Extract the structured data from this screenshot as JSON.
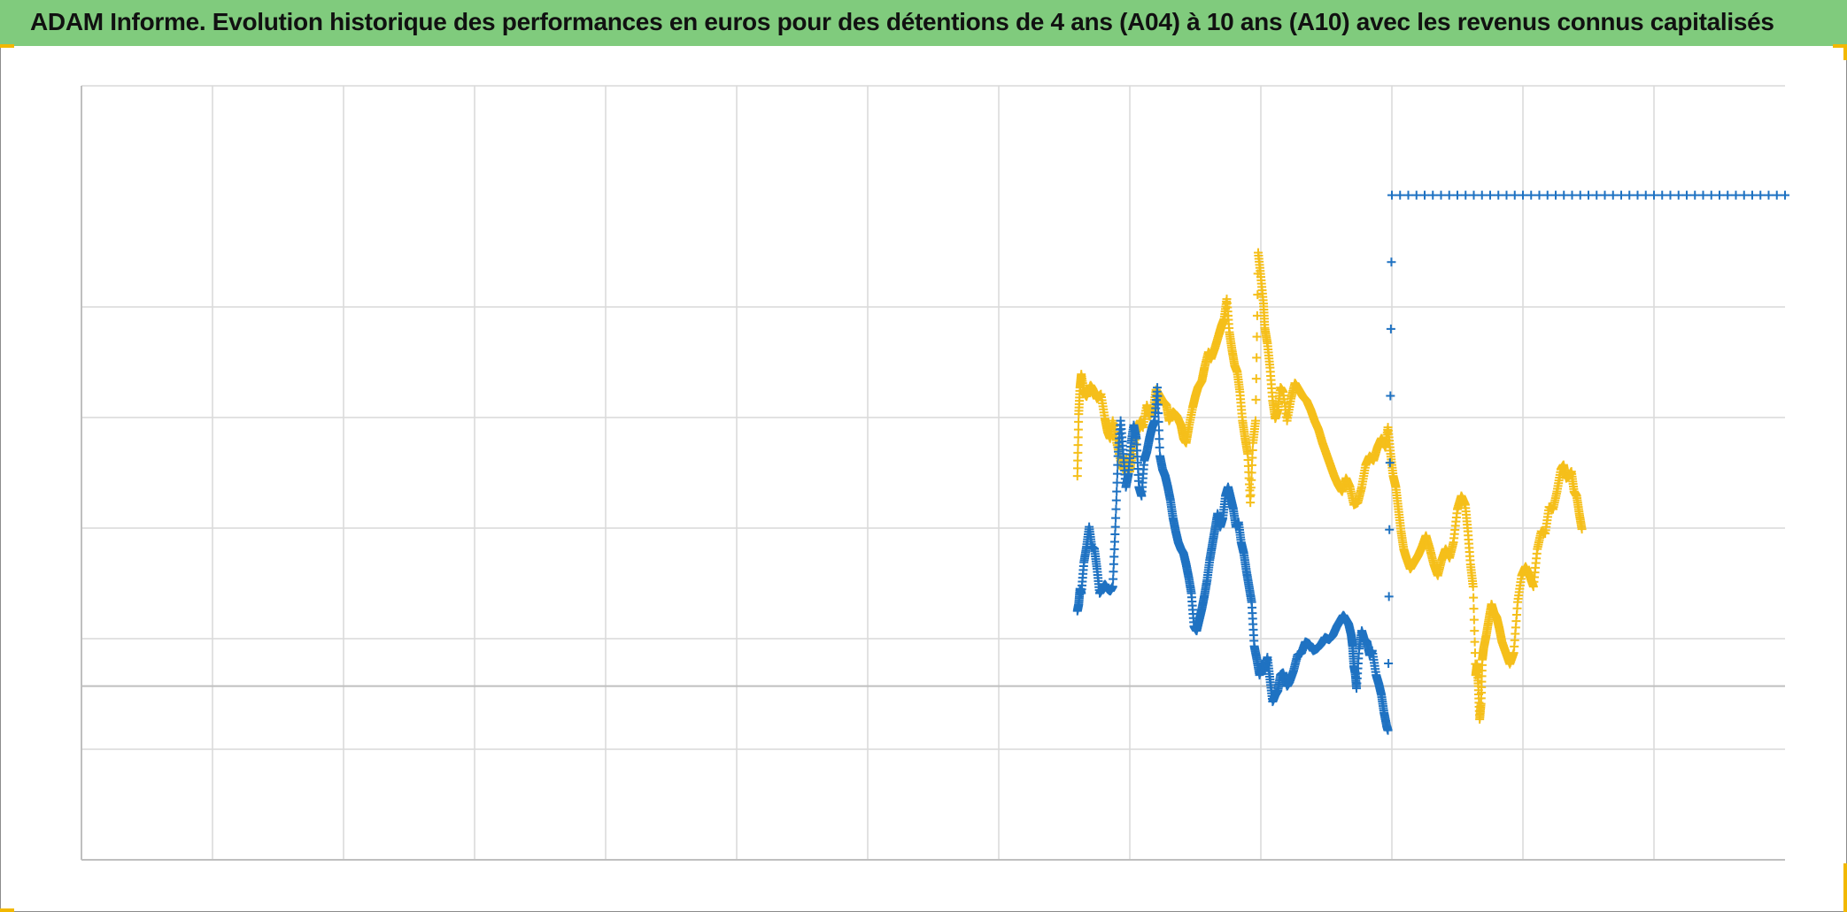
{
  "header": {
    "title": "ADAM Informe. Evolution historique des performances en euros pour des détentions de 4 ans (A04) à 10 ans (A10) avec les revenus connus capitalisés"
  },
  "colors": {
    "title_background": "#80cb7d",
    "corner_accent": "#f2b800",
    "series_a04": "#f5bf1a",
    "series_a10": "#1f72c2",
    "grid": "#d9d9d9",
    "zero_line": "#bfbfbf"
  },
  "chart_data": {
    "type": "scatter",
    "title": "ADAM Informe. Evolution historique des performances en euros pour des détentions de 4 ans (A04) à 10 ans (A10) avec les revenus connus capitalisés",
    "xlim": [
      0,
      13
    ],
    "ylim": [
      -0.7857,
      2.7143
    ],
    "x_gridlines": [
      1,
      2,
      3,
      4,
      5,
      6,
      7,
      8,
      9,
      10,
      11,
      12
    ],
    "y_gridlines": [
      1.7143,
      1.2143,
      0.7143,
      0.2143,
      0,
      -0.2857
    ],
    "tick_labels_x": [],
    "tick_labels_y": [],
    "legend": "none",
    "grid": true,
    "markers": "plus",
    "series": [
      {
        "key": "a04",
        "color": "#f5bf1a",
        "points": [
          [
            7.6,
            0.95
          ],
          [
            7.61,
            1.23
          ],
          [
            7.62,
            1.35
          ],
          [
            7.63,
            1.41
          ],
          [
            7.65,
            1.33
          ],
          [
            7.67,
            1.31
          ],
          [
            7.7,
            1.36
          ],
          [
            7.72,
            1.34
          ],
          [
            7.75,
            1.3
          ],
          [
            7.78,
            1.32
          ],
          [
            7.81,
            1.21
          ],
          [
            7.83,
            1.15
          ],
          [
            7.85,
            1.12
          ],
          [
            7.87,
            1.2
          ],
          [
            7.9,
            1.1
          ],
          [
            7.93,
            1.02
          ],
          [
            7.95,
            0.98
          ],
          [
            7.97,
            1.03
          ],
          [
            8.0,
            0.97
          ],
          [
            8.02,
            1.05
          ],
          [
            8.05,
            1.15
          ],
          [
            8.08,
            1.2
          ],
          [
            8.1,
            1.17
          ],
          [
            8.13,
            1.27
          ],
          [
            8.15,
            1.22
          ],
          [
            8.18,
            1.25
          ],
          [
            8.2,
            1.34
          ],
          [
            8.22,
            1.32
          ],
          [
            8.25,
            1.29
          ],
          [
            8.28,
            1.27
          ],
          [
            8.3,
            1.2
          ],
          [
            8.33,
            1.24
          ],
          [
            8.36,
            1.22
          ],
          [
            8.39,
            1.18
          ],
          [
            8.41,
            1.12
          ],
          [
            8.43,
            1.1
          ],
          [
            8.45,
            1.17
          ],
          [
            8.48,
            1.26
          ],
          [
            8.5,
            1.31
          ],
          [
            8.52,
            1.35
          ],
          [
            8.55,
            1.38
          ],
          [
            8.57,
            1.44
          ],
          [
            8.6,
            1.51
          ],
          [
            8.62,
            1.48
          ],
          [
            8.65,
            1.53
          ],
          [
            8.68,
            1.59
          ],
          [
            8.7,
            1.63
          ],
          [
            8.72,
            1.66
          ],
          [
            8.74,
            1.75
          ],
          [
            8.76,
            1.6
          ],
          [
            8.78,
            1.52
          ],
          [
            8.8,
            1.45
          ],
          [
            8.82,
            1.42
          ],
          [
            8.84,
            1.33
          ],
          [
            8.86,
            1.2
          ],
          [
            8.88,
            1.12
          ],
          [
            8.9,
            1.05
          ],
          [
            8.92,
            0.83
          ],
          [
            8.94,
            1.1
          ],
          [
            8.96,
            1.2
          ],
          [
            8.98,
            1.96
          ],
          [
            9.0,
            1.85
          ],
          [
            9.02,
            1.73
          ],
          [
            9.03,
            1.62
          ],
          [
            9.05,
            1.55
          ],
          [
            9.07,
            1.44
          ],
          [
            9.09,
            1.29
          ],
          [
            9.11,
            1.21
          ],
          [
            9.13,
            1.25
          ],
          [
            9.15,
            1.35
          ],
          [
            9.17,
            1.33
          ],
          [
            9.2,
            1.2
          ],
          [
            9.23,
            1.3
          ],
          [
            9.26,
            1.37
          ],
          [
            9.29,
            1.34
          ],
          [
            9.32,
            1.31
          ],
          [
            9.35,
            1.29
          ],
          [
            9.38,
            1.25
          ],
          [
            9.41,
            1.2
          ],
          [
            9.44,
            1.16
          ],
          [
            9.47,
            1.1
          ],
          [
            9.5,
            1.05
          ],
          [
            9.53,
            1.0
          ],
          [
            9.56,
            0.95
          ],
          [
            9.59,
            0.91
          ],
          [
            9.62,
            0.88
          ],
          [
            9.65,
            0.94
          ],
          [
            9.68,
            0.9
          ],
          [
            9.71,
            0.82
          ],
          [
            9.74,
            0.83
          ],
          [
            9.77,
            0.9
          ],
          [
            9.8,
            1.0
          ],
          [
            9.83,
            1.04
          ],
          [
            9.86,
            1.02
          ],
          [
            9.89,
            1.08
          ],
          [
            9.92,
            1.12
          ],
          [
            9.95,
            1.08
          ],
          [
            9.97,
            1.17
          ],
          [
            9.99,
            1.05
          ],
          [
            10.01,
            0.95
          ],
          [
            10.03,
            0.9
          ],
          [
            10.05,
            0.8
          ],
          [
            10.07,
            0.7
          ],
          [
            10.09,
            0.62
          ],
          [
            10.11,
            0.58
          ],
          [
            10.14,
            0.53
          ],
          [
            10.17,
            0.56
          ],
          [
            10.2,
            0.59
          ],
          [
            10.23,
            0.63
          ],
          [
            10.26,
            0.68
          ],
          [
            10.29,
            0.62
          ],
          [
            10.32,
            0.55
          ],
          [
            10.35,
            0.5
          ],
          [
            10.38,
            0.57
          ],
          [
            10.41,
            0.62
          ],
          [
            10.44,
            0.58
          ],
          [
            10.47,
            0.65
          ],
          [
            10.5,
            0.8
          ],
          [
            10.53,
            0.86
          ],
          [
            10.56,
            0.82
          ],
          [
            10.58,
            0.7
          ],
          [
            10.6,
            0.55
          ],
          [
            10.62,
            0.45
          ],
          [
            10.64,
            0.05
          ],
          [
            10.65,
            0.1
          ],
          [
            10.66,
            0.0
          ],
          [
            10.67,
            -0.15
          ],
          [
            10.68,
            -0.08
          ],
          [
            10.69,
            0.12
          ],
          [
            10.7,
            0.17
          ],
          [
            10.72,
            0.23
          ],
          [
            10.74,
            0.3
          ],
          [
            10.76,
            0.37
          ],
          [
            10.78,
            0.33
          ],
          [
            10.8,
            0.31
          ],
          [
            10.82,
            0.26
          ],
          [
            10.84,
            0.2
          ],
          [
            10.87,
            0.15
          ],
          [
            10.9,
            0.1
          ],
          [
            10.93,
            0.15
          ],
          [
            10.96,
            0.38
          ],
          [
            10.99,
            0.5
          ],
          [
            11.02,
            0.54
          ],
          [
            11.05,
            0.5
          ],
          [
            11.08,
            0.45
          ],
          [
            11.11,
            0.62
          ],
          [
            11.14,
            0.7
          ],
          [
            11.17,
            0.69
          ],
          [
            11.2,
            0.81
          ],
          [
            11.23,
            0.8
          ],
          [
            11.26,
            0.88
          ],
          [
            11.29,
            0.98
          ],
          [
            11.31,
            1.0
          ],
          [
            11.33,
            0.94
          ],
          [
            11.35,
            0.95
          ],
          [
            11.37,
            0.97
          ],
          [
            11.39,
            0.88
          ],
          [
            11.41,
            0.86
          ],
          [
            11.43,
            0.78
          ],
          [
            11.45,
            0.71
          ]
        ]
      },
      {
        "key": "a10",
        "color": "#1f72c2",
        "points": [
          [
            7.6,
            0.34
          ],
          [
            7.61,
            0.37
          ],
          [
            7.62,
            0.44
          ],
          [
            7.63,
            0.42
          ],
          [
            7.65,
            0.56
          ],
          [
            7.67,
            0.63
          ],
          [
            7.69,
            0.72
          ],
          [
            7.71,
            0.63
          ],
          [
            7.73,
            0.62
          ],
          [
            7.75,
            0.53
          ],
          [
            7.77,
            0.42
          ],
          [
            7.79,
            0.44
          ],
          [
            7.81,
            0.46
          ],
          [
            7.83,
            0.44
          ],
          [
            7.85,
            0.43
          ],
          [
            7.87,
            0.45
          ],
          [
            7.89,
            0.72
          ],
          [
            7.91,
            1.04
          ],
          [
            7.93,
            1.2
          ],
          [
            7.95,
            1.05
          ],
          [
            7.97,
            0.9
          ],
          [
            7.99,
            0.96
          ],
          [
            8.01,
            1.1
          ],
          [
            8.03,
            1.18
          ],
          [
            8.05,
            1.12
          ],
          [
            8.07,
            0.9
          ],
          [
            8.09,
            0.86
          ],
          [
            8.11,
            1.02
          ],
          [
            8.13,
            1.06
          ],
          [
            8.15,
            1.12
          ],
          [
            8.17,
            1.17
          ],
          [
            8.19,
            1.2
          ],
          [
            8.21,
            1.35
          ],
          [
            8.23,
            1.04
          ],
          [
            8.25,
            0.98
          ],
          [
            8.27,
            0.95
          ],
          [
            8.29,
            0.9
          ],
          [
            8.31,
            0.84
          ],
          [
            8.33,
            0.76
          ],
          [
            8.35,
            0.7
          ],
          [
            8.37,
            0.65
          ],
          [
            8.39,
            0.62
          ],
          [
            8.41,
            0.6
          ],
          [
            8.43,
            0.55
          ],
          [
            8.45,
            0.49
          ],
          [
            8.47,
            0.42
          ],
          [
            8.49,
            0.27
          ],
          [
            8.51,
            0.25
          ],
          [
            8.53,
            0.3
          ],
          [
            8.55,
            0.35
          ],
          [
            8.57,
            0.41
          ],
          [
            8.59,
            0.48
          ],
          [
            8.61,
            0.57
          ],
          [
            8.63,
            0.64
          ],
          [
            8.65,
            0.71
          ],
          [
            8.67,
            0.78
          ],
          [
            8.69,
            0.72
          ],
          [
            8.71,
            0.76
          ],
          [
            8.73,
            0.86
          ],
          [
            8.75,
            0.9
          ],
          [
            8.77,
            0.85
          ],
          [
            8.79,
            0.8
          ],
          [
            8.81,
            0.72
          ],
          [
            8.83,
            0.74
          ],
          [
            8.85,
            0.65
          ],
          [
            8.87,
            0.6
          ],
          [
            8.89,
            0.52
          ],
          [
            8.91,
            0.45
          ],
          [
            8.93,
            0.38
          ],
          [
            8.95,
            0.18
          ],
          [
            8.97,
            0.12
          ],
          [
            8.99,
            0.05
          ],
          [
            9.01,
            0.1
          ],
          [
            9.03,
            0.07
          ],
          [
            9.05,
            0.13
          ],
          [
            9.07,
            0.03
          ],
          [
            9.09,
            -0.07
          ],
          [
            9.11,
            -0.04
          ],
          [
            9.13,
            -0.02
          ],
          [
            9.15,
            0.05
          ],
          [
            9.17,
            0.06
          ],
          [
            9.2,
            0.0
          ],
          [
            9.22,
            0.02
          ],
          [
            9.25,
            0.07
          ],
          [
            9.28,
            0.14
          ],
          [
            9.31,
            0.15
          ],
          [
            9.34,
            0.2
          ],
          [
            9.37,
            0.19
          ],
          [
            9.4,
            0.16
          ],
          [
            9.43,
            0.17
          ],
          [
            9.46,
            0.19
          ],
          [
            9.49,
            0.22
          ],
          [
            9.52,
            0.21
          ],
          [
            9.55,
            0.23
          ],
          [
            9.58,
            0.27
          ],
          [
            9.61,
            0.3
          ],
          [
            9.63,
            0.32
          ],
          [
            9.65,
            0.3
          ],
          [
            9.67,
            0.28
          ],
          [
            9.69,
            0.23
          ],
          [
            9.7,
            0.18
          ],
          [
            9.71,
            0.09
          ],
          [
            9.72,
            0.06
          ],
          [
            9.73,
            -0.01
          ],
          [
            9.75,
            0.17
          ],
          [
            9.77,
            0.25
          ],
          [
            9.79,
            0.21
          ],
          [
            9.81,
            0.2
          ],
          [
            9.83,
            0.14
          ],
          [
            9.85,
            0.16
          ],
          [
            9.88,
            0.05
          ],
          [
            9.9,
            0.01
          ],
          [
            9.92,
            -0.04
          ],
          [
            9.94,
            -0.12
          ],
          [
            9.96,
            -0.18
          ],
          [
            9.97,
            -0.2
          ],
          [
            10.0,
            2.22
          ],
          [
            10.5,
            2.22
          ],
          [
            11.0,
            2.22
          ],
          [
            11.5,
            2.22
          ],
          [
            12.0,
            2.22
          ],
          [
            12.5,
            2.22
          ],
          [
            13.0,
            2.22
          ]
        ]
      }
    ]
  }
}
